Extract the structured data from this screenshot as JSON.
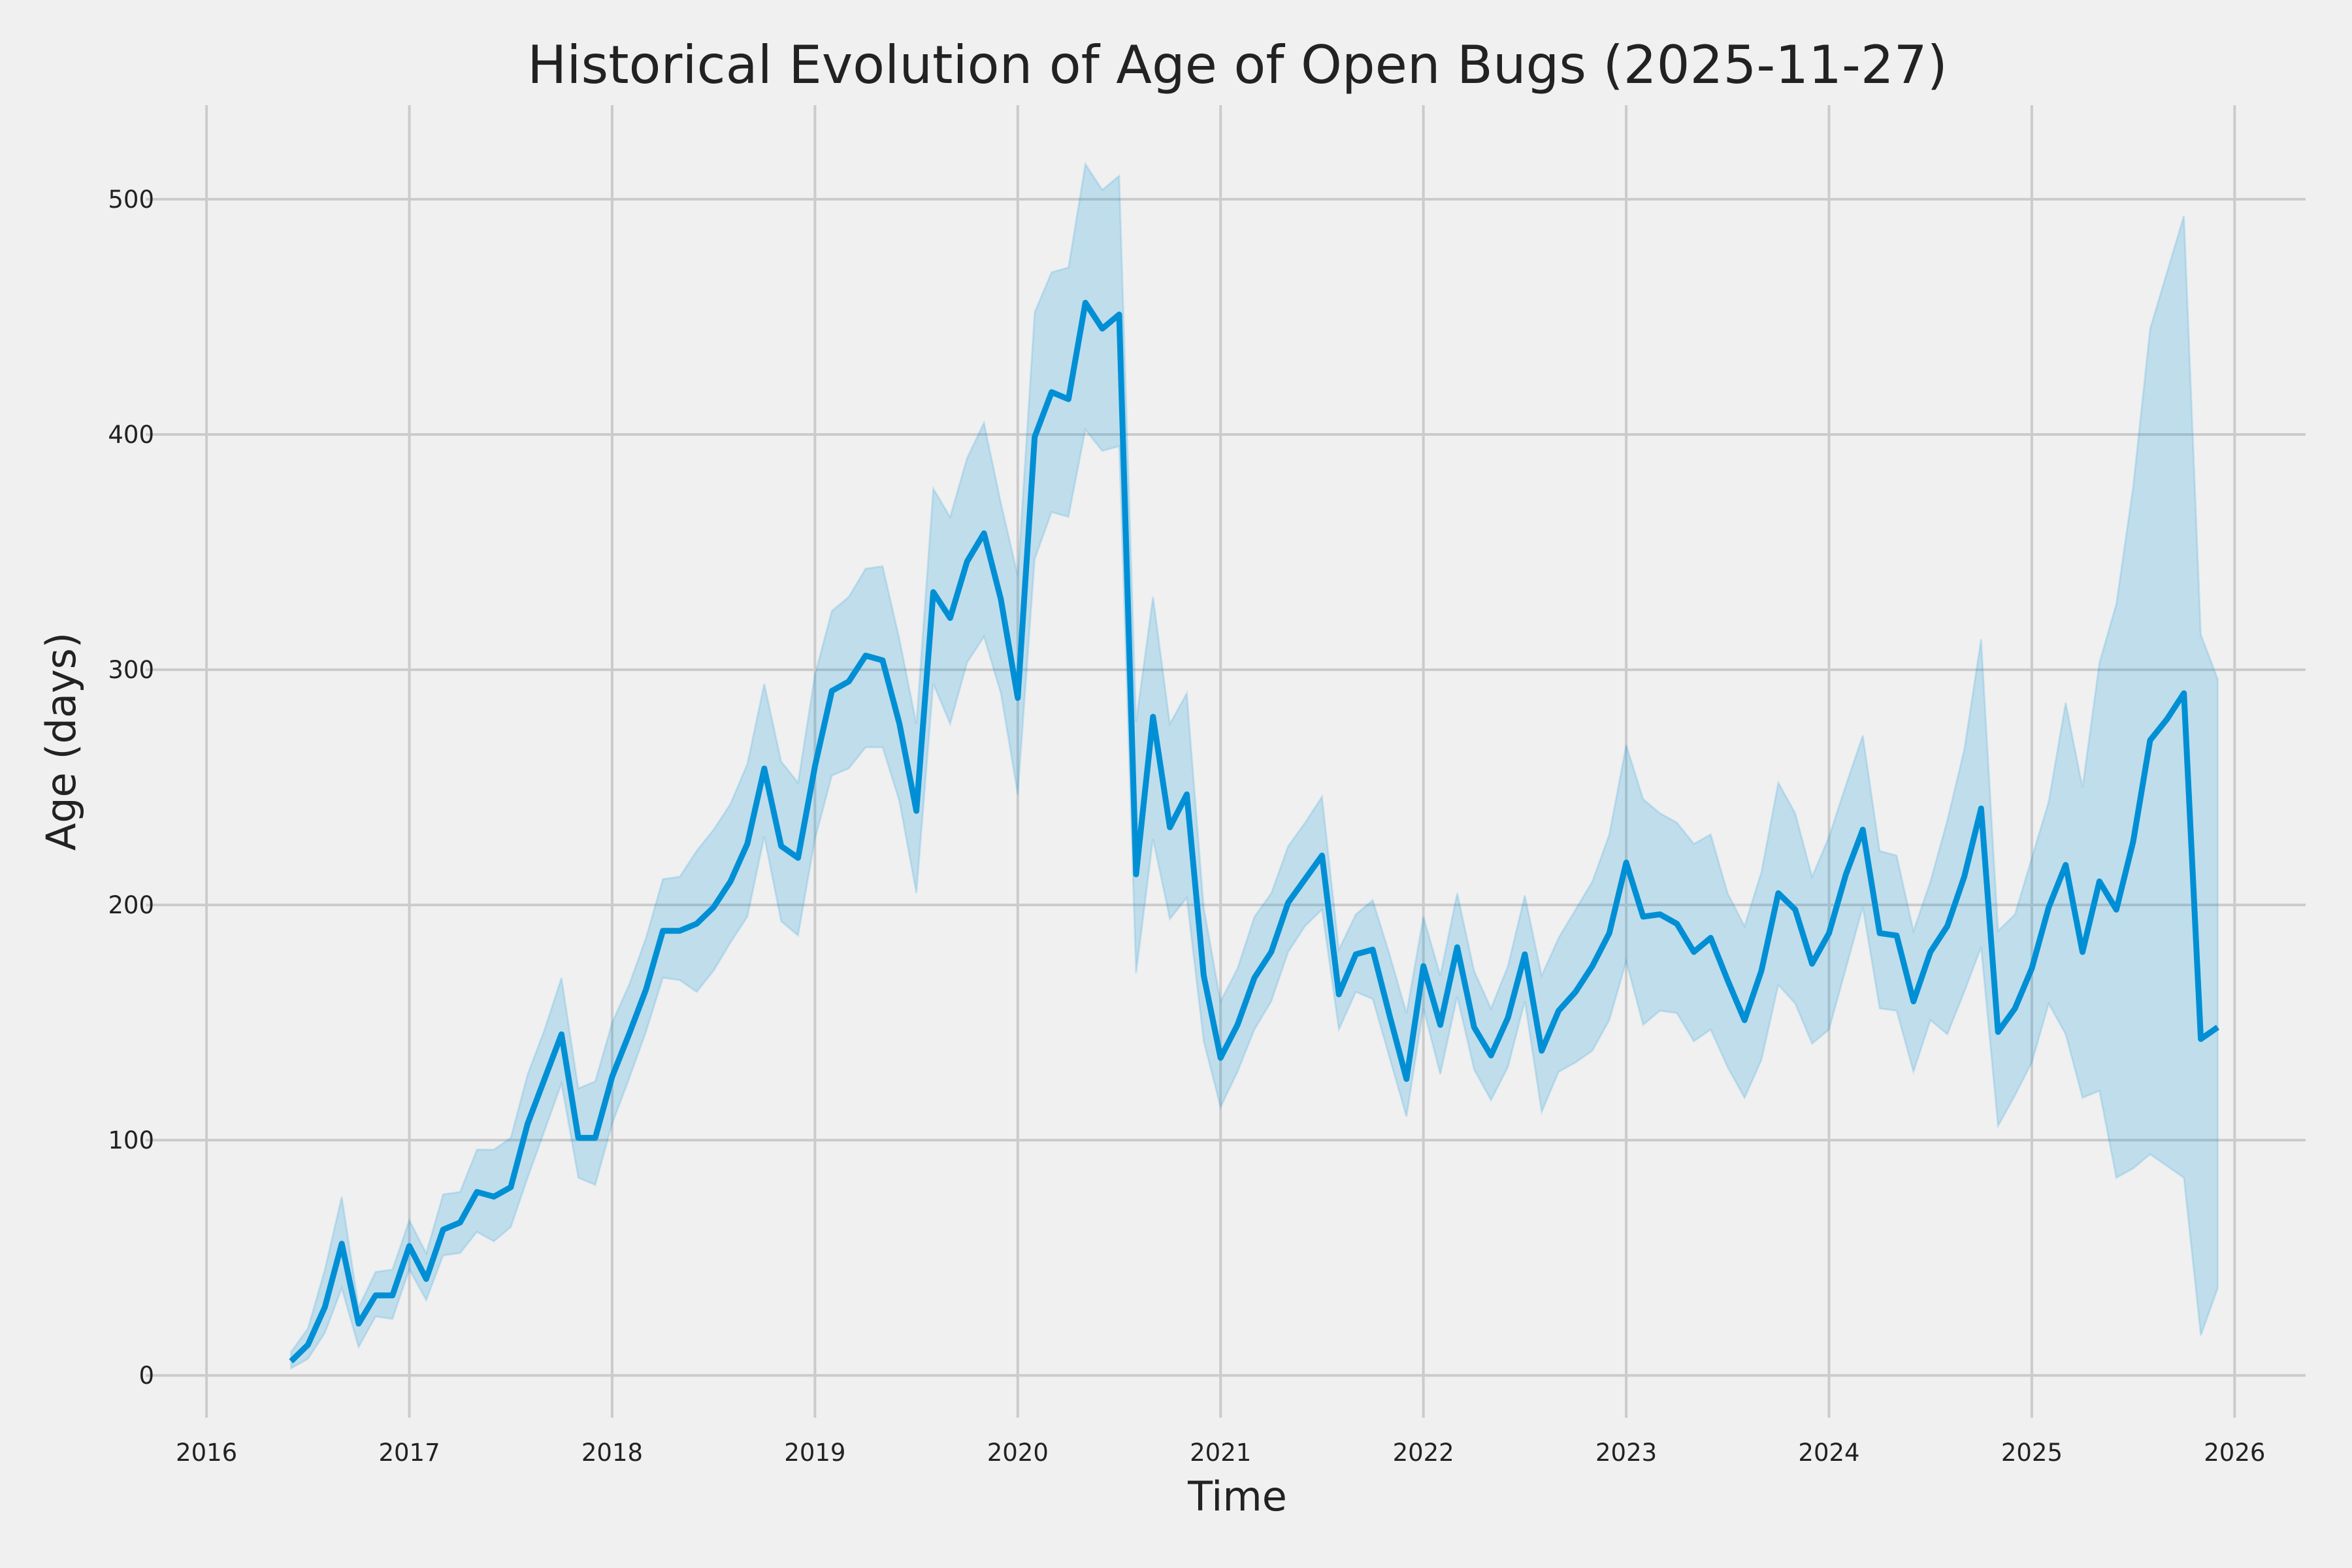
{
  "chart_data": {
    "type": "line",
    "title": "Historical Evolution of Age of Open Bugs (2025-11-27)",
    "xlabel": "Time",
    "ylabel": "Age (days)",
    "xlim": [
      2015.7,
      2026.35
    ],
    "ylim": [
      -18,
      540
    ],
    "x_ticks": [
      "2016",
      "2017",
      "2018",
      "2019",
      "2020",
      "2021",
      "2022",
      "2023",
      "2024",
      "2025",
      "2026"
    ],
    "y_ticks": [
      0,
      100,
      200,
      300,
      400,
      500
    ],
    "grid": true,
    "legend": "none",
    "colors": {
      "line": "#008fd5",
      "band": "#008fd5",
      "background": "#f0f0f0",
      "grid": "#cbcbcb"
    },
    "x_start": "2016-06",
    "x_step": "month",
    "series": [
      {
        "values": [
          6,
          13,
          29,
          56,
          22,
          34,
          34,
          55,
          41,
          62,
          65,
          78,
          76,
          80,
          107,
          126,
          145,
          101,
          101,
          127,
          145,
          164,
          189,
          189,
          192,
          199,
          210,
          226,
          258,
          225,
          220,
          259,
          291,
          295,
          306,
          304,
          277,
          240,
          333,
          322,
          346,
          358,
          330,
          288,
          399,
          418,
          415,
          456,
          445,
          451,
          213,
          280,
          233,
          247,
          170,
          135,
          149,
          169,
          180,
          201,
          211,
          221,
          162,
          179,
          181,
          153,
          126,
          174,
          149,
          182,
          148,
          136,
          152,
          179,
          138,
          155,
          163,
          174,
          188,
          218,
          195,
          196,
          192,
          180,
          186,
          168,
          151,
          172,
          205,
          198,
          175,
          188,
          213,
          232,
          188,
          187,
          159,
          180,
          191,
          212,
          241,
          146,
          156,
          173,
          199,
          217,
          180,
          210,
          198,
          227,
          270,
          279,
          290,
          143,
          148
        ],
        "upper": [
          10,
          20,
          45,
          76,
          29,
          44,
          45,
          66,
          52,
          77,
          78,
          96,
          96,
          101,
          128,
          147,
          169,
          122,
          125,
          150,
          166,
          186,
          211,
          212,
          223,
          232,
          243,
          260,
          294,
          261,
          252,
          298,
          325,
          331,
          343,
          344,
          313,
          277,
          377,
          365,
          390,
          405,
          371,
          340,
          452,
          469,
          471,
          515,
          504,
          510,
          278,
          331,
          277,
          290,
          199,
          159,
          173,
          195,
          205,
          225,
          235,
          246,
          181,
          196,
          202,
          179,
          154,
          195,
          170,
          205,
          172,
          156,
          174,
          204,
          170,
          186,
          198,
          210,
          230,
          268,
          245,
          239,
          235,
          226,
          230,
          205,
          191,
          214,
          252,
          239,
          212,
          229,
          251,
          272,
          223,
          221,
          189,
          210,
          236,
          266,
          313,
          189,
          196,
          220,
          244,
          286,
          250,
          303,
          328,
          378,
          445,
          469,
          493,
          315,
          296
        ],
        "lower": [
          3,
          7,
          18,
          37,
          12,
          25,
          24,
          45,
          32,
          51,
          52,
          61,
          57,
          63,
          84,
          104,
          124,
          84,
          81,
          107,
          126,
          146,
          169,
          168,
          163,
          172,
          184,
          195,
          229,
          193,
          187,
          228,
          255,
          258,
          267,
          267,
          244,
          205,
          294,
          277,
          303,
          314,
          290,
          247,
          347,
          367,
          365,
          402,
          393,
          395,
          171,
          228,
          194,
          203,
          142,
          114,
          129,
          147,
          159,
          180,
          191,
          198,
          147,
          163,
          160,
          135,
          110,
          156,
          128,
          161,
          130,
          117,
          131,
          159,
          112,
          129,
          133,
          138,
          151,
          176,
          149,
          155,
          154,
          142,
          147,
          131,
          118,
          134,
          166,
          158,
          141,
          147,
          173,
          199,
          156,
          155,
          129,
          151,
          145,
          163,
          182,
          106,
          119,
          133,
          158,
          145,
          118,
          121,
          84,
          88,
          94,
          89,
          84,
          17,
          37
        ]
      }
    ]
  }
}
